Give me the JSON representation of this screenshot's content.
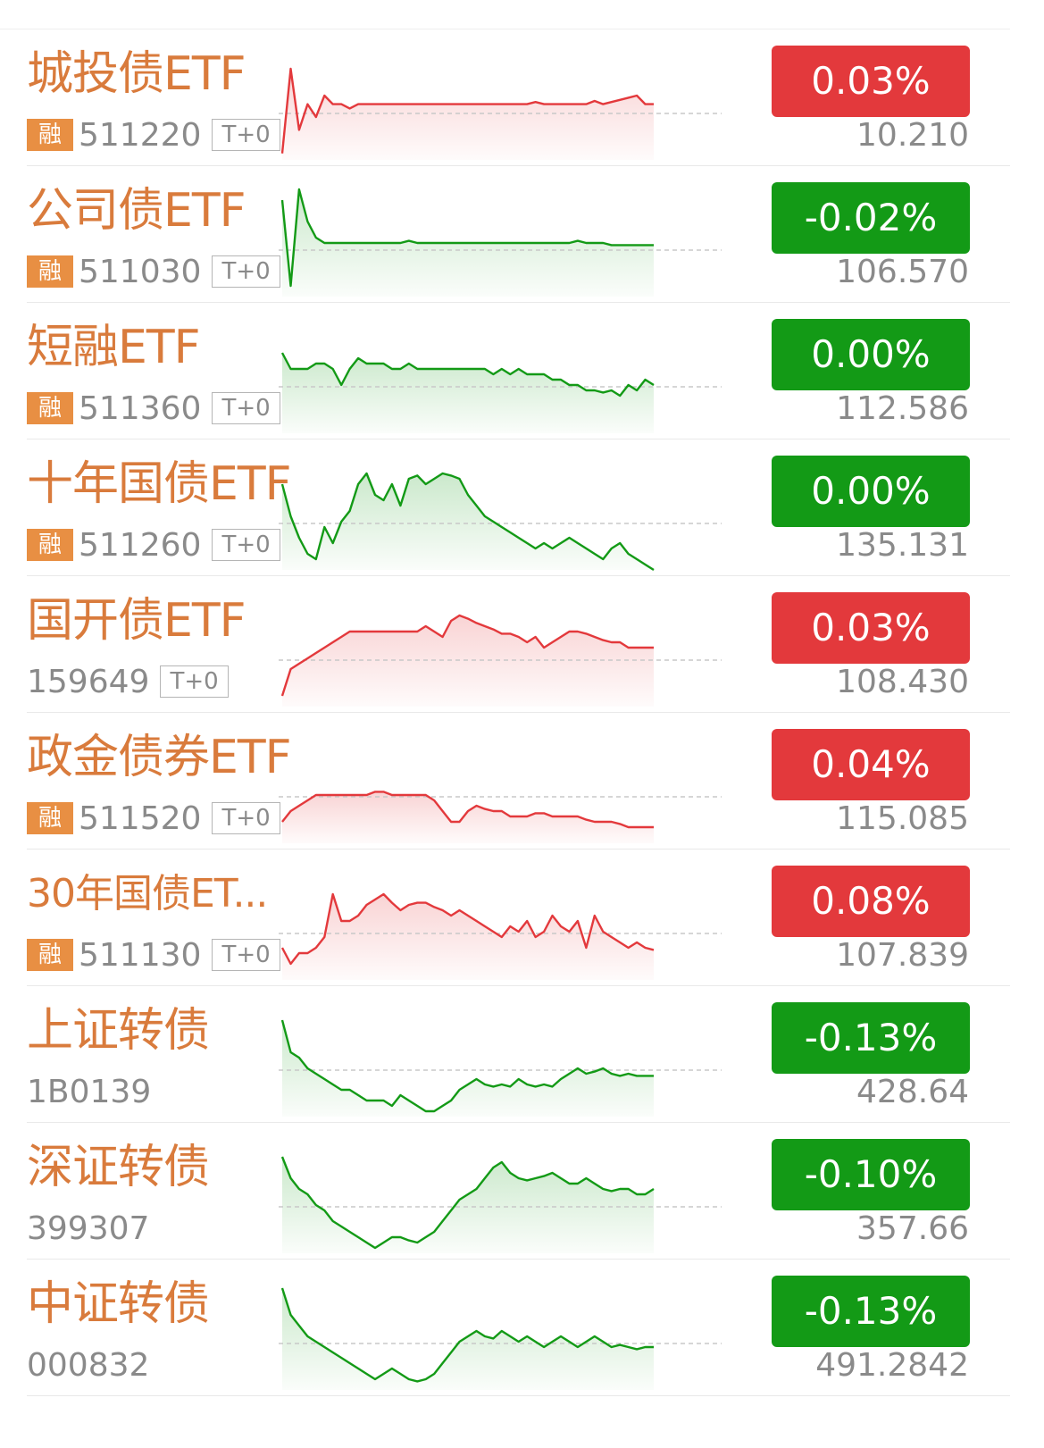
{
  "rows": [
    {
      "name": "城投债ETF",
      "rong": "融",
      "code": "511220",
      "t0": "T+0",
      "change": "0.03%",
      "price": "10.210",
      "trend": "up",
      "spark_color": "#e3393c",
      "spark": [
        6,
        85,
        28,
        52,
        40,
        60,
        52,
        52,
        48,
        52,
        52,
        52,
        52,
        52,
        52,
        52,
        52,
        52,
        52,
        52,
        52,
        52,
        52,
        52,
        52,
        52,
        52,
        52,
        52,
        52,
        54,
        52,
        52,
        52,
        52,
        52,
        52,
        55,
        52,
        54,
        56,
        58,
        60,
        52,
        52
      ]
    },
    {
      "name": "公司债ETF",
      "rong": "融",
      "code": "511030",
      "t0": "T+0",
      "change": "-0.02%",
      "price": "106.570",
      "trend": "down",
      "spark_color": "#139a16",
      "spark": [
        90,
        10,
        100,
        70,
        55,
        50,
        50,
        50,
        50,
        50,
        50,
        50,
        50,
        50,
        50,
        52,
        50,
        50,
        50,
        50,
        50,
        50,
        50,
        50,
        50,
        50,
        50,
        50,
        50,
        50,
        50,
        50,
        50,
        50,
        50,
        52,
        50,
        50,
        50,
        48,
        48,
        48,
        48,
        48,
        48
      ]
    },
    {
      "name": "短融ETF",
      "rong": "融",
      "code": "511360",
      "t0": "T+0",
      "change": "0.00%",
      "price": "112.586",
      "trend": "flat",
      "spark_color": "#139a16",
      "spark": [
        75,
        60,
        60,
        60,
        65,
        65,
        60,
        45,
        60,
        70,
        65,
        65,
        65,
        60,
        60,
        65,
        60,
        60,
        60,
        60,
        60,
        60,
        60,
        60,
        60,
        55,
        60,
        55,
        60,
        55,
        55,
        55,
        50,
        50,
        45,
        45,
        40,
        40,
        38,
        40,
        35,
        45,
        40,
        50,
        45
      ]
    },
    {
      "name": "十年国债ETF",
      "rong": "融",
      "code": "511260",
      "t0": "T+0",
      "change": "0.00%",
      "price": "135.131",
      "trend": "flat",
      "spark_color": "#139a16",
      "spark": [
        80,
        50,
        30,
        15,
        10,
        40,
        25,
        45,
        55,
        80,
        90,
        70,
        65,
        80,
        60,
        85,
        88,
        80,
        85,
        90,
        88,
        85,
        70,
        60,
        50,
        45,
        40,
        35,
        30,
        25,
        20,
        25,
        20,
        25,
        30,
        25,
        20,
        15,
        10,
        20,
        25,
        15,
        10,
        5,
        0
      ]
    },
    {
      "name": "国开债ETF",
      "rong": "",
      "code": "159649",
      "t0": "T+0",
      "change": "0.03%",
      "price": "108.430",
      "trend": "up",
      "spark_color": "#e3393c",
      "spark": [
        10,
        35,
        40,
        45,
        50,
        55,
        60,
        65,
        70,
        70,
        70,
        70,
        70,
        70,
        70,
        70,
        70,
        75,
        70,
        65,
        80,
        85,
        82,
        78,
        75,
        72,
        68,
        68,
        65,
        60,
        65,
        55,
        60,
        65,
        70,
        70,
        68,
        65,
        62,
        60,
        60,
        55,
        55,
        55,
        55
      ]
    },
    {
      "name": "政金债券ETF",
      "rong": "融",
      "code": "511520",
      "t0": "T+0",
      "change": "0.04%",
      "price": "115.085",
      "trend": "up",
      "spark_color": "#e3393c",
      "spark": [
        20,
        30,
        35,
        40,
        45,
        45,
        45,
        45,
        45,
        45,
        45,
        48,
        48,
        45,
        45,
        45,
        45,
        45,
        40,
        30,
        20,
        20,
        30,
        35,
        32,
        30,
        30,
        25,
        25,
        25,
        28,
        28,
        25,
        25,
        25,
        25,
        22,
        20,
        20,
        20,
        18,
        15,
        15,
        15,
        15
      ]
    },
    {
      "name": "30年国债ET...",
      "rong": "融",
      "code": "511130",
      "t0": "T+0",
      "change": "0.08%",
      "price": "107.839",
      "trend": "up",
      "spark_color": "#e3393c",
      "spark": [
        30,
        15,
        25,
        25,
        30,
        40,
        80,
        55,
        55,
        60,
        70,
        75,
        80,
        72,
        65,
        70,
        72,
        72,
        68,
        65,
        60,
        65,
        60,
        55,
        50,
        45,
        40,
        50,
        45,
        55,
        40,
        45,
        60,
        50,
        45,
        55,
        30,
        60,
        45,
        40,
        35,
        30,
        35,
        30,
        28
      ]
    },
    {
      "name": "上证转债",
      "rong": "",
      "code": "1B0139",
      "t0": "",
      "change": "-0.13%",
      "price": "428.64",
      "trend": "down",
      "spark_color": "#139a16",
      "spark": [
        90,
        60,
        55,
        45,
        40,
        35,
        30,
        25,
        25,
        20,
        15,
        15,
        15,
        10,
        20,
        15,
        10,
        5,
        5,
        10,
        15,
        25,
        30,
        35,
        30,
        28,
        30,
        28,
        35,
        30,
        28,
        30,
        28,
        35,
        40,
        45,
        40,
        42,
        45,
        40,
        38,
        40,
        38,
        38,
        38
      ]
    },
    {
      "name": "深证转债",
      "rong": "",
      "code": "399307",
      "t0": "",
      "change": "-0.10%",
      "price": "357.66",
      "trend": "down",
      "spark_color": "#139a16",
      "spark": [
        90,
        70,
        60,
        55,
        45,
        40,
        30,
        25,
        20,
        15,
        10,
        5,
        10,
        15,
        15,
        12,
        10,
        15,
        20,
        30,
        40,
        50,
        55,
        60,
        70,
        80,
        85,
        75,
        70,
        68,
        70,
        72,
        75,
        70,
        65,
        65,
        70,
        65,
        60,
        58,
        60,
        60,
        55,
        55,
        60
      ]
    },
    {
      "name": "中证转债",
      "rong": "",
      "code": "000832",
      "t0": "",
      "change": "-0.13%",
      "price": "491.2842",
      "trend": "down",
      "spark_color": "#139a16",
      "spark": [
        95,
        70,
        60,
        50,
        45,
        40,
        35,
        30,
        25,
        20,
        15,
        10,
        15,
        20,
        15,
        10,
        8,
        10,
        15,
        25,
        35,
        45,
        50,
        55,
        50,
        48,
        55,
        50,
        45,
        50,
        45,
        40,
        45,
        50,
        45,
        40,
        45,
        50,
        45,
        40,
        42,
        40,
        38,
        40,
        40
      ]
    }
  ],
  "colors": {
    "up": "#e3393c",
    "down": "#139a16",
    "flat": "#139a16",
    "name": "#d97b3c",
    "muted": "#8a8a8a"
  }
}
